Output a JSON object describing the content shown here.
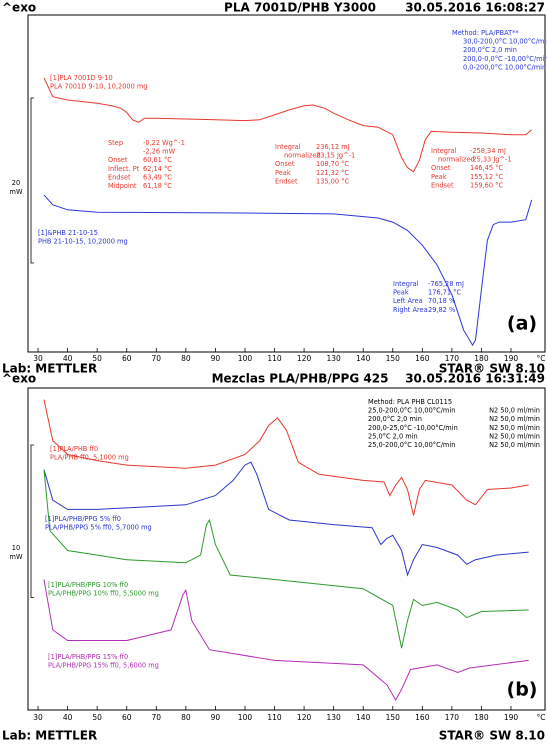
{
  "chart_data": [
    {
      "type": "line",
      "title": "PLA 7001D/PHB Y3000",
      "date": "30.05.2016 16:08:27",
      "exo": "^exo",
      "lab": "Lab: METTLER",
      "software": "STAR® SW 8.10",
      "panel_label": "(a)",
      "xlabel": "°C",
      "xlim": [
        26.6,
        201.5
      ],
      "xticks": [
        30,
        40,
        50,
        60,
        70,
        80,
        90,
        100,
        110,
        120,
        130,
        140,
        150,
        160,
        170,
        180,
        190
      ],
      "ylim": [
        0,
        40
      ],
      "scale_bar": {
        "value": 20,
        "unit": "mW"
      },
      "series": [
        {
          "color": "#e8382e",
          "x": [
            32,
            35,
            40,
            50,
            55,
            58,
            60,
            62,
            64,
            66,
            70,
            80,
            90,
            100,
            105,
            110,
            115,
            120,
            123,
            127,
            130,
            135,
            140,
            145,
            150,
            153,
            155,
            157,
            159,
            161,
            163,
            170,
            180,
            190,
            195,
            197
          ],
          "values": [
            33.0,
            30.7,
            30.3,
            29.9,
            29.6,
            29.3,
            28.8,
            27.9,
            27.6,
            28.1,
            28.1,
            28.0,
            27.9,
            27.8,
            27.9,
            28.5,
            29.1,
            29.6,
            29.7,
            29.3,
            28.7,
            27.9,
            27.2,
            27.0,
            26.1,
            23.3,
            22.1,
            21.6,
            23.0,
            25.5,
            26.5,
            26.4,
            26.3,
            26.1,
            26.1,
            26.7
          ]
        },
        {
          "color": "#2b36d9",
          "x": [
            32,
            35,
            40,
            50,
            100,
            130,
            145,
            150,
            155,
            160,
            165,
            170,
            174,
            177,
            178,
            180,
            182,
            184,
            186,
            190,
            195,
            197
          ],
          "values": [
            18.8,
            17.6,
            17.0,
            16.7,
            16.6,
            16.5,
            16.0,
            15.5,
            14.5,
            12.7,
            10.3,
            6.7,
            2.4,
            0.6,
            1.2,
            7.3,
            13.3,
            15.2,
            15.5,
            15.5,
            15.8,
            18.2
          ]
        }
      ],
      "annotations": [
        [
          "[1]PLA 7001D 9-10",
          "PLA 7001D 9-10, 10,2000 mg"
        ],
        [
          "Step"
        ],
        [
          "-0,22 Wg^-1",
          "-2,26 mW",
          "60,61 °C",
          "62,14 °C",
          "63,49 °C",
          "61,18 °C"
        ],
        [
          "Onset",
          "Inflect. Pt",
          "Endset",
          "Midpoint"
        ],
        [
          "Integral"
        ],
        [
          "normalized"
        ],
        [
          "Onset",
          "Peak",
          "Endset"
        ],
        [
          "236,12 mJ",
          "23,15 Jg^-1",
          "108,70 °C",
          "121,32 °C",
          "135,00 °C"
        ],
        [
          "Integral"
        ],
        [
          "normalized"
        ],
        [
          "Onset",
          "Peak",
          "Endset"
        ],
        [
          "-258,34 mJ",
          "-25,33 Jg^-1",
          "146,45 °C",
          "155,12 °C",
          "159,60 °C"
        ],
        [
          "[1]&PHB 21-10-15",
          "PHB 21-10-15, 10,2000 mg"
        ],
        [
          "Integral",
          "Peak",
          "Left Area",
          "Right Area"
        ],
        [
          "-765,28 mJ",
          "176,71 °C",
          "70,18 %",
          "29,82 %"
        ],
        [
          "Method: PLA/PBAT**"
        ],
        [
          "30,0-200,0°C 10,00°C/min",
          "200,0°C 2,0 min",
          "200,0-0,0°C -10,00°C/min",
          "0,0-200,0°C 10,00°C/min"
        ]
      ]
    },
    {
      "type": "line",
      "title": "Mezclas PLA/PHB/PPG 425",
      "date": "30.05.2016 16:31:49",
      "exo": "^exo",
      "lab": "Lab: METTLER",
      "software": "STAR® SW 8.10",
      "panel_label": "(b)",
      "xlabel": "°C",
      "xlim": [
        26.6,
        201.5
      ],
      "xticks": [
        30,
        40,
        50,
        60,
        70,
        80,
        90,
        100,
        110,
        120,
        130,
        140,
        150,
        160,
        170,
        180,
        190
      ],
      "ylim": [
        0,
        20
      ],
      "scale_bar": {
        "value": 10,
        "unit": "mW"
      },
      "series": [
        {
          "color": "#e8382e",
          "x": [
            32,
            35,
            40,
            50,
            60,
            80,
            90,
            100,
            105,
            108,
            111,
            114,
            118,
            125,
            140,
            147,
            149,
            151,
            153,
            155,
            157,
            159,
            161,
            170,
            175,
            178,
            182,
            190,
            196
          ],
          "values": [
            19.7,
            17.0,
            16.1,
            15.7,
            15.4,
            15.2,
            15.4,
            16.1,
            17.0,
            18.0,
            18.5,
            17.7,
            15.6,
            14.8,
            14.4,
            14.3,
            13.4,
            14.1,
            14.6,
            13.8,
            12.1,
            13.8,
            14.4,
            14.1,
            13.1,
            12.8,
            13.8,
            13.9,
            14.1
          ]
        },
        {
          "color": "#2b36c9",
          "x": [
            32,
            35,
            40,
            50,
            60,
            80,
            90,
            96,
            100,
            102,
            104,
            108,
            115,
            130,
            143,
            146,
            148,
            150,
            153,
            155,
            157,
            160,
            165,
            172,
            175,
            178,
            185,
            196
          ],
          "values": [
            15.1,
            13.1,
            12.5,
            12.5,
            12.6,
            12.8,
            13.4,
            14.4,
            15.4,
            15.6,
            14.8,
            12.5,
            11.8,
            11.5,
            11.3,
            10.2,
            10.6,
            10.8,
            9.8,
            8.2,
            9.2,
            10.2,
            10.0,
            9.5,
            8.9,
            9.2,
            9.5,
            9.7
          ]
        },
        {
          "color": "#2e9a2e",
          "x": [
            32,
            34,
            40,
            60,
            80,
            85,
            87,
            88,
            90,
            95,
            110,
            140,
            150,
            153,
            155,
            157,
            160,
            165,
            172,
            175,
            180,
            196
          ],
          "values": [
            15.1,
            11.1,
            9.8,
            9.2,
            9.0,
            9.5,
            11.5,
            11.8,
            10.2,
            8.2,
            7.9,
            7.3,
            6.2,
            3.4,
            5.2,
            6.6,
            6.2,
            6.4,
            5.9,
            5.4,
            5.8,
            5.9
          ]
        },
        {
          "color": "#b22fb5",
          "x": [
            32,
            35,
            40,
            60,
            75,
            79,
            80,
            82,
            88,
            110,
            140,
            148,
            151,
            153,
            156,
            165,
            172,
            176,
            196
          ],
          "values": [
            7.9,
            4.6,
            3.9,
            3.9,
            4.6,
            6.9,
            7.2,
            5.2,
            3.3,
            2.6,
            2.3,
            1.0,
            0.0,
            0.7,
            2.0,
            2.3,
            1.8,
            2.1,
            2.6
          ]
        }
      ],
      "annotations": [
        [
          "Method: PLA PHB CL0115"
        ],
        [
          "25,0-200,0°C 10,00°C/min",
          "200,0°C 2,0 min",
          "200,0-25,0°C -10,00°C/min",
          "25,0°C 2,0 min",
          "25,0-200,0°C 10,00°C/min"
        ],
        [
          "N2 50,0 ml/min",
          "N2 50,0 ml/min",
          "N2 50,0 ml/min",
          "N2 50,0 ml/min",
          "N2 50,0 ml/min"
        ],
        [
          "[1]PLA/PHB ff0",
          "PLA/PHB ff0, 5,1000 mg"
        ],
        [
          "[1]PLA/PHB/PPG 5% ff0",
          "PLA/PHB/PPG 5% ff0, 5,7000 mg"
        ],
        [
          "[1]PLA/PHB/PPG 10% ff0",
          "PLA/PHB/PPG 10% ff0, 5,5000 mg"
        ],
        [
          "[1]PLA/PHB/PPG 15% ff0",
          "PLA/PHB/PPG 15% ff0, 5,6000 mg"
        ]
      ]
    }
  ]
}
